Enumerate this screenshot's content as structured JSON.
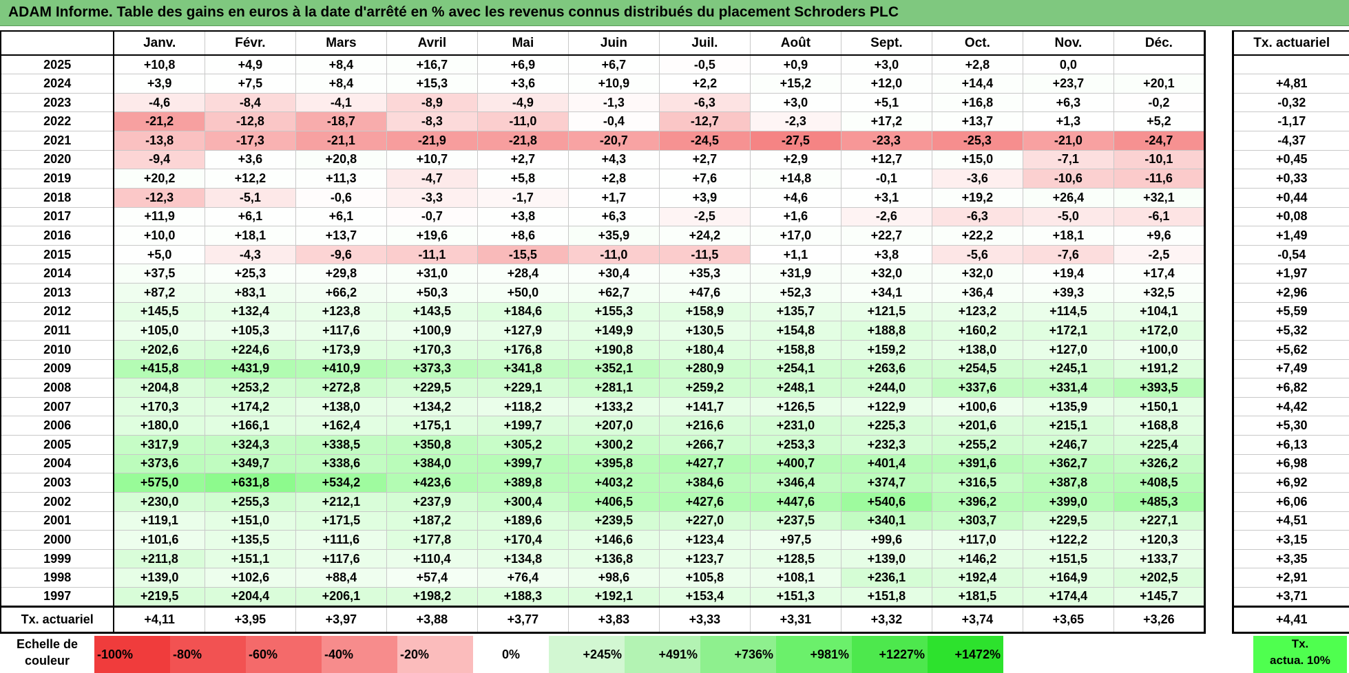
{
  "title": "ADAM Informe. Table des gains en euros à la date d'arrêté en % avec les revenus connus distribués du placement Schroders PLC",
  "months": [
    "Janv.",
    "Févr.",
    "Mars",
    "Avril",
    "Mai",
    "Juin",
    "Juil.",
    "Août",
    "Sept.",
    "Oct.",
    "Nov.",
    "Déc."
  ],
  "side_header": "Tx. actuariel",
  "rows": [
    {
      "year": "2025",
      "values": [
        "+10,8",
        "+4,9",
        "+8,4",
        "+16,7",
        "+6,9",
        "+6,7",
        "-0,5",
        "+0,9",
        "+3,0",
        "+2,8",
        "0,0",
        ""
      ],
      "tx": ""
    },
    {
      "year": "2024",
      "values": [
        "+3,9",
        "+7,5",
        "+8,4",
        "+15,3",
        "+3,6",
        "+10,9",
        "+2,2",
        "+15,2",
        "+12,0",
        "+14,4",
        "+23,7",
        "+20,1"
      ],
      "tx": "+4,81"
    },
    {
      "year": "2023",
      "values": [
        "-4,6",
        "-8,4",
        "-4,1",
        "-8,9",
        "-4,9",
        "-1,3",
        "-6,3",
        "+3,0",
        "+5,1",
        "+16,8",
        "+6,3",
        "-0,2"
      ],
      "tx": "-0,32"
    },
    {
      "year": "2022",
      "values": [
        "-21,2",
        "-12,8",
        "-18,7",
        "-8,3",
        "-11,0",
        "-0,4",
        "-12,7",
        "-2,3",
        "+17,2",
        "+13,7",
        "+1,3",
        "+5,2"
      ],
      "tx": "-1,17"
    },
    {
      "year": "2021",
      "values": [
        "-13,8",
        "-17,3",
        "-21,1",
        "-21,9",
        "-21,8",
        "-20,7",
        "-24,5",
        "-27,5",
        "-23,3",
        "-25,3",
        "-21,0",
        "-24,7"
      ],
      "tx": "-4,37"
    },
    {
      "year": "2020",
      "values": [
        "-9,4",
        "+3,6",
        "+20,8",
        "+10,7",
        "+2,7",
        "+4,3",
        "+2,7",
        "+2,9",
        "+12,7",
        "+15,0",
        "-7,1",
        "-10,1"
      ],
      "tx": "+0,45"
    },
    {
      "year": "2019",
      "values": [
        "+20,2",
        "+12,2",
        "+11,3",
        "-4,7",
        "+5,8",
        "+2,8",
        "+7,6",
        "+14,8",
        "-0,1",
        "-3,6",
        "-10,6",
        "-11,6"
      ],
      "tx": "+0,33"
    },
    {
      "year": "2018",
      "values": [
        "-12,3",
        "-5,1",
        "-0,6",
        "-3,3",
        "-1,7",
        "+1,7",
        "+3,9",
        "+4,6",
        "+3,1",
        "+19,2",
        "+26,4",
        "+32,1"
      ],
      "tx": "+0,44"
    },
    {
      "year": "2017",
      "values": [
        "+11,9",
        "+6,1",
        "+6,1",
        "-0,7",
        "+3,8",
        "+6,3",
        "-2,5",
        "+1,6",
        "-2,6",
        "-6,3",
        "-5,0",
        "-6,1"
      ],
      "tx": "+0,08"
    },
    {
      "year": "2016",
      "values": [
        "+10,0",
        "+18,1",
        "+13,7",
        "+19,6",
        "+8,6",
        "+35,9",
        "+24,2",
        "+17,0",
        "+22,7",
        "+22,2",
        "+18,1",
        "+9,6"
      ],
      "tx": "+1,49"
    },
    {
      "year": "2015",
      "values": [
        "+5,0",
        "-4,3",
        "-9,6",
        "-11,1",
        "-15,5",
        "-11,0",
        "-11,5",
        "+1,1",
        "+3,8",
        "-5,6",
        "-7,6",
        "-2,5"
      ],
      "tx": "-0,54"
    },
    {
      "year": "2014",
      "values": [
        "+37,5",
        "+25,3",
        "+29,8",
        "+31,0",
        "+28,4",
        "+30,4",
        "+35,3",
        "+31,9",
        "+32,0",
        "+32,0",
        "+19,4",
        "+17,4"
      ],
      "tx": "+1,97"
    },
    {
      "year": "2013",
      "values": [
        "+87,2",
        "+83,1",
        "+66,2",
        "+50,3",
        "+50,0",
        "+62,7",
        "+47,6",
        "+52,3",
        "+34,1",
        "+36,4",
        "+39,3",
        "+32,5"
      ],
      "tx": "+2,96"
    },
    {
      "year": "2012",
      "values": [
        "+145,5",
        "+132,4",
        "+123,8",
        "+143,5",
        "+184,6",
        "+155,3",
        "+158,9",
        "+135,7",
        "+121,5",
        "+123,2",
        "+114,5",
        "+104,1"
      ],
      "tx": "+5,59"
    },
    {
      "year": "2011",
      "values": [
        "+105,0",
        "+105,3",
        "+117,6",
        "+100,9",
        "+127,9",
        "+149,9",
        "+130,5",
        "+154,8",
        "+188,8",
        "+160,2",
        "+172,1",
        "+172,0"
      ],
      "tx": "+5,32"
    },
    {
      "year": "2010",
      "values": [
        "+202,6",
        "+224,6",
        "+173,9",
        "+170,3",
        "+176,8",
        "+190,8",
        "+180,4",
        "+158,8",
        "+159,2",
        "+138,0",
        "+127,0",
        "+100,0"
      ],
      "tx": "+5,62"
    },
    {
      "year": "2009",
      "values": [
        "+415,8",
        "+431,9",
        "+410,9",
        "+373,3",
        "+341,8",
        "+352,1",
        "+280,9",
        "+254,1",
        "+263,6",
        "+254,5",
        "+245,1",
        "+191,2"
      ],
      "tx": "+7,49"
    },
    {
      "year": "2008",
      "values": [
        "+204,8",
        "+253,2",
        "+272,8",
        "+229,5",
        "+229,1",
        "+281,1",
        "+259,2",
        "+248,1",
        "+244,0",
        "+337,6",
        "+331,4",
        "+393,5"
      ],
      "tx": "+6,82"
    },
    {
      "year": "2007",
      "values": [
        "+170,3",
        "+174,2",
        "+138,0",
        "+134,2",
        "+118,2",
        "+133,2",
        "+141,7",
        "+126,5",
        "+122,9",
        "+100,6",
        "+135,9",
        "+150,1"
      ],
      "tx": "+4,42"
    },
    {
      "year": "2006",
      "values": [
        "+180,0",
        "+166,1",
        "+162,4",
        "+175,1",
        "+199,7",
        "+207,0",
        "+216,6",
        "+231,0",
        "+225,3",
        "+201,6",
        "+215,1",
        "+168,8"
      ],
      "tx": "+5,30"
    },
    {
      "year": "2005",
      "values": [
        "+317,9",
        "+324,3",
        "+338,5",
        "+350,8",
        "+305,2",
        "+300,2",
        "+266,7",
        "+253,3",
        "+232,3",
        "+255,2",
        "+246,7",
        "+225,4"
      ],
      "tx": "+6,13"
    },
    {
      "year": "2004",
      "values": [
        "+373,6",
        "+349,7",
        "+338,6",
        "+384,0",
        "+399,7",
        "+395,8",
        "+427,7",
        "+400,7",
        "+401,4",
        "+391,6",
        "+362,7",
        "+326,2"
      ],
      "tx": "+6,98"
    },
    {
      "year": "2003",
      "values": [
        "+575,0",
        "+631,8",
        "+534,2",
        "+423,6",
        "+389,8",
        "+403,2",
        "+384,6",
        "+346,4",
        "+374,7",
        "+316,5",
        "+387,8",
        "+408,5"
      ],
      "tx": "+6,92"
    },
    {
      "year": "2002",
      "values": [
        "+230,0",
        "+255,3",
        "+212,1",
        "+237,9",
        "+300,4",
        "+406,5",
        "+427,6",
        "+447,6",
        "+540,6",
        "+396,2",
        "+399,0",
        "+485,3"
      ],
      "tx": "+6,06"
    },
    {
      "year": "2001",
      "values": [
        "+119,1",
        "+151,0",
        "+171,5",
        "+187,2",
        "+189,6",
        "+239,5",
        "+227,0",
        "+237,5",
        "+340,1",
        "+303,7",
        "+229,5",
        "+227,1"
      ],
      "tx": "+4,51"
    },
    {
      "year": "2000",
      "values": [
        "+101,6",
        "+135,5",
        "+111,6",
        "+177,8",
        "+170,4",
        "+146,6",
        "+123,4",
        "+97,5",
        "+99,6",
        "+117,0",
        "+122,2",
        "+120,3"
      ],
      "tx": "+3,15"
    },
    {
      "year": "1999",
      "values": [
        "+211,8",
        "+151,1",
        "+117,6",
        "+110,4",
        "+134,8",
        "+136,8",
        "+123,7",
        "+128,5",
        "+139,0",
        "+146,2",
        "+151,5",
        "+133,7"
      ],
      "tx": "+3,35"
    },
    {
      "year": "1998",
      "values": [
        "+139,0",
        "+102,6",
        "+88,4",
        "+57,4",
        "+76,4",
        "+98,6",
        "+105,8",
        "+108,1",
        "+236,1",
        "+192,4",
        "+164,9",
        "+202,5"
      ],
      "tx": "+2,91"
    },
    {
      "year": "1997",
      "values": [
        "+219,5",
        "+204,4",
        "+206,1",
        "+198,2",
        "+188,3",
        "+192,1",
        "+153,4",
        "+151,3",
        "+151,8",
        "+181,5",
        "+174,4",
        "+145,7"
      ],
      "tx": "+3,71"
    }
  ],
  "footer": {
    "label": "Tx. actuariel",
    "values": [
      "+4,11",
      "+3,95",
      "+3,97",
      "+3,88",
      "+3,77",
      "+3,83",
      "+3,33",
      "+3,31",
      "+3,32",
      "+3,74",
      "+3,65",
      "+3,26"
    ],
    "tx": "+4,41"
  },
  "scale": {
    "label_line1": "Echelle de",
    "label_line2": "couleur",
    "steps": [
      {
        "text": "-100%",
        "color": "#f03c3c",
        "align": "left"
      },
      {
        "text": "-80%",
        "color": "#f25252",
        "align": "left"
      },
      {
        "text": "-60%",
        "color": "#f46a6a",
        "align": "left"
      },
      {
        "text": "-40%",
        "color": "#f78c8c",
        "align": "left"
      },
      {
        "text": "-20%",
        "color": "#fbbcbc",
        "align": "left"
      },
      {
        "text": "0%",
        "color": "#ffffff",
        "align": "center"
      },
      {
        "text": "+245%",
        "color": "#d2f7d2",
        "align": "right"
      },
      {
        "text": "+491%",
        "color": "#b3f3b3",
        "align": "right"
      },
      {
        "text": "+736%",
        "color": "#8ef08e",
        "align": "right"
      },
      {
        "text": "+981%",
        "color": "#6bf06b",
        "align": "right"
      },
      {
        "text": "+1227%",
        "color": "#4de84d",
        "align": "right"
      },
      {
        "text": "+1472%",
        "color": "#2de22d",
        "align": "right"
      }
    ],
    "tx_line1": "Tx.",
    "tx_line2": "actua. 10%"
  },
  "colors": {
    "title_bg": "#7fc87f",
    "neg_max": "#f25050",
    "pos_max": "#55ee55"
  }
}
